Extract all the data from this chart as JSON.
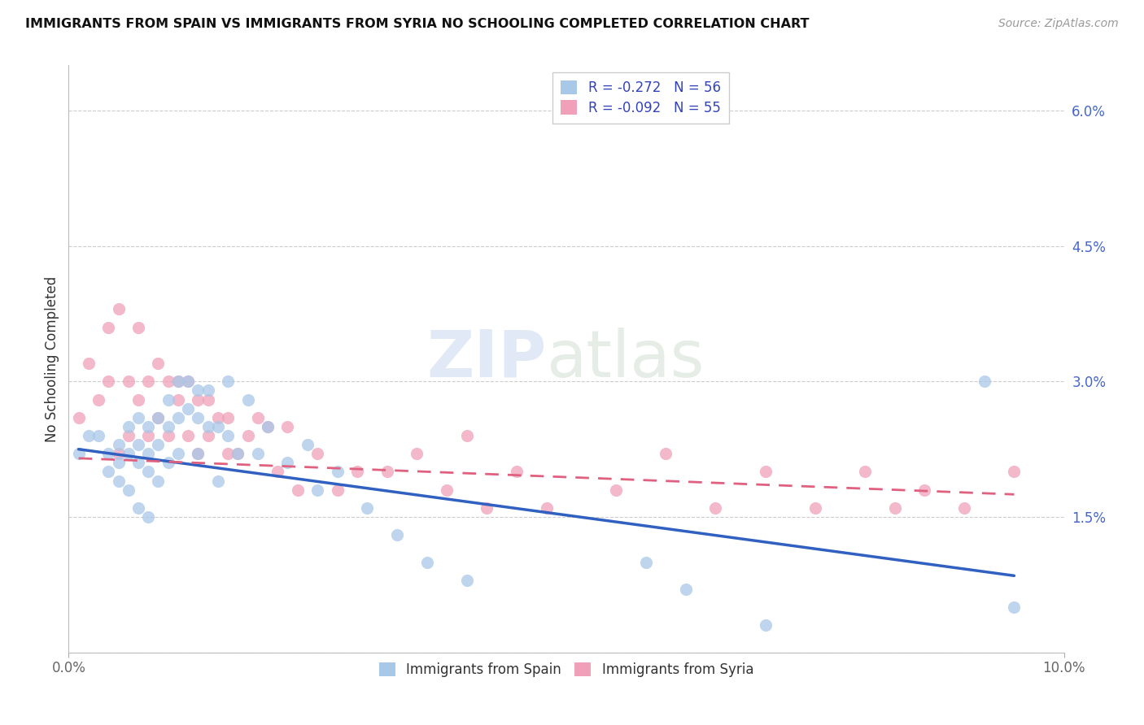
{
  "title": "IMMIGRANTS FROM SPAIN VS IMMIGRANTS FROM SYRIA NO SCHOOLING COMPLETED CORRELATION CHART",
  "source": "Source: ZipAtlas.com",
  "ylabel": "No Schooling Completed",
  "xlim": [
    0.0,
    0.1
  ],
  "ylim": [
    0.0,
    0.065
  ],
  "yticks": [
    0.0,
    0.015,
    0.03,
    0.045,
    0.06
  ],
  "ytick_labels": [
    "",
    "1.5%",
    "3.0%",
    "4.5%",
    "6.0%"
  ],
  "xticks": [
    0.0,
    0.1
  ],
  "xtick_labels": [
    "0.0%",
    "10.0%"
  ],
  "legend_spain_r": "-0.272",
  "legend_spain_n": "56",
  "legend_syria_r": "-0.092",
  "legend_syria_n": "55",
  "color_spain": "#a8c8e8",
  "color_syria": "#f0a0b8",
  "line_spain": "#3060c0",
  "line_syria": "#e06080",
  "watermark_zip": "ZIP",
  "watermark_atlas": "atlas",
  "spain_x": [
    0.001,
    0.002,
    0.003,
    0.004,
    0.004,
    0.005,
    0.005,
    0.005,
    0.006,
    0.006,
    0.006,
    0.007,
    0.007,
    0.007,
    0.007,
    0.008,
    0.008,
    0.008,
    0.008,
    0.009,
    0.009,
    0.009,
    0.01,
    0.01,
    0.01,
    0.011,
    0.011,
    0.011,
    0.012,
    0.012,
    0.013,
    0.013,
    0.013,
    0.014,
    0.014,
    0.015,
    0.015,
    0.016,
    0.016,
    0.017,
    0.018,
    0.019,
    0.02,
    0.022,
    0.024,
    0.025,
    0.027,
    0.03,
    0.033,
    0.036,
    0.04,
    0.058,
    0.062,
    0.07,
    0.092,
    0.095
  ],
  "spain_y": [
    0.022,
    0.024,
    0.024,
    0.022,
    0.02,
    0.023,
    0.021,
    0.019,
    0.025,
    0.022,
    0.018,
    0.026,
    0.023,
    0.021,
    0.016,
    0.025,
    0.022,
    0.02,
    0.015,
    0.026,
    0.023,
    0.019,
    0.028,
    0.025,
    0.021,
    0.03,
    0.026,
    0.022,
    0.03,
    0.027,
    0.029,
    0.026,
    0.022,
    0.029,
    0.025,
    0.025,
    0.019,
    0.03,
    0.024,
    0.022,
    0.028,
    0.022,
    0.025,
    0.021,
    0.023,
    0.018,
    0.02,
    0.016,
    0.013,
    0.01,
    0.008,
    0.01,
    0.007,
    0.003,
    0.03,
    0.005
  ],
  "syria_x": [
    0.001,
    0.002,
    0.003,
    0.004,
    0.004,
    0.005,
    0.005,
    0.006,
    0.006,
    0.007,
    0.007,
    0.008,
    0.008,
    0.009,
    0.009,
    0.01,
    0.01,
    0.011,
    0.011,
    0.012,
    0.012,
    0.013,
    0.013,
    0.014,
    0.014,
    0.015,
    0.016,
    0.016,
    0.017,
    0.018,
    0.019,
    0.02,
    0.021,
    0.022,
    0.023,
    0.025,
    0.027,
    0.029,
    0.032,
    0.035,
    0.038,
    0.04,
    0.042,
    0.045,
    0.048,
    0.055,
    0.06,
    0.065,
    0.07,
    0.075,
    0.08,
    0.083,
    0.086,
    0.09,
    0.095
  ],
  "syria_y": [
    0.026,
    0.032,
    0.028,
    0.036,
    0.03,
    0.038,
    0.022,
    0.03,
    0.024,
    0.036,
    0.028,
    0.03,
    0.024,
    0.026,
    0.032,
    0.03,
    0.024,
    0.03,
    0.028,
    0.03,
    0.024,
    0.028,
    0.022,
    0.028,
    0.024,
    0.026,
    0.022,
    0.026,
    0.022,
    0.024,
    0.026,
    0.025,
    0.02,
    0.025,
    0.018,
    0.022,
    0.018,
    0.02,
    0.02,
    0.022,
    0.018,
    0.024,
    0.016,
    0.02,
    0.016,
    0.018,
    0.022,
    0.016,
    0.02,
    0.016,
    0.02,
    0.016,
    0.018,
    0.016,
    0.02
  ],
  "spain_trendline_x": [
    0.001,
    0.095
  ],
  "spain_trendline_y": [
    0.0225,
    0.0085
  ],
  "syria_trendline_x": [
    0.001,
    0.095
  ],
  "syria_trendline_y": [
    0.0215,
    0.0175
  ]
}
